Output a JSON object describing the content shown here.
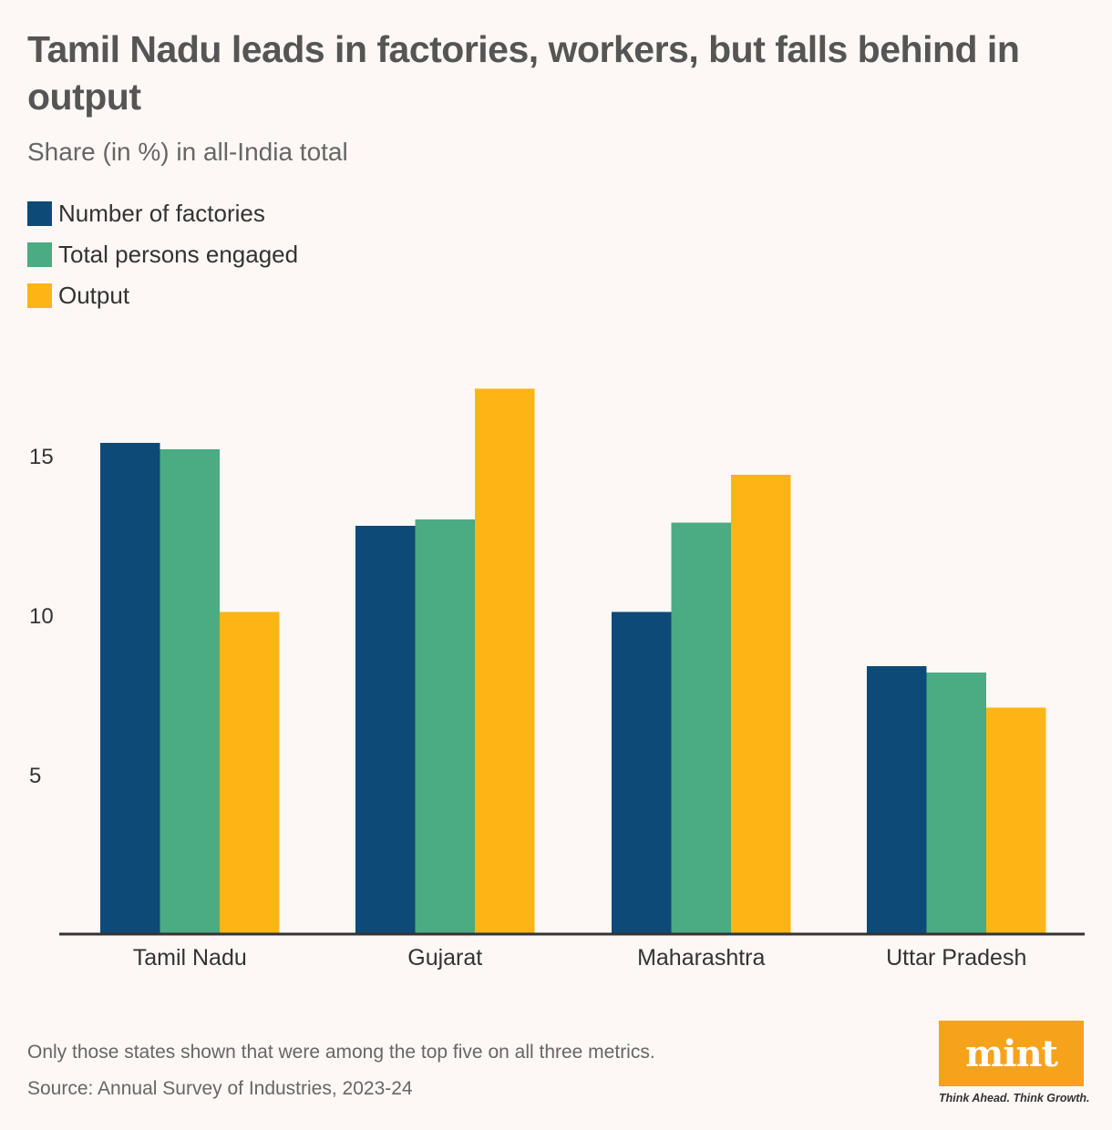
{
  "title": "Tamil Nadu leads in factories, workers, but falls behind in output",
  "subtitle": "Share (in %) in all-India total",
  "note": "Only those states shown that were among the top five on all three metrics.",
  "source": "Source: Annual Survey of Industries, 2023-24",
  "logo": {
    "text": "mint",
    "tagline": "Think Ahead. Think Growth."
  },
  "colors": {
    "factories": "#0d4a78",
    "persons": "#4bab82",
    "output": "#fdb515",
    "background": "#fdf8f5",
    "logo": "#f7a21b"
  },
  "chart_data": {
    "type": "bar",
    "categories": [
      "Tamil Nadu",
      "Gujarat",
      "Maharashtra",
      "Uttar Pradesh"
    ],
    "series": [
      {
        "name": "Number of factories",
        "values": [
          15.4,
          12.8,
          10.1,
          8.4
        ]
      },
      {
        "name": "Total persons engaged",
        "values": [
          15.2,
          13.0,
          12.9,
          8.2
        ]
      },
      {
        "name": "Output",
        "values": [
          10.1,
          17.1,
          14.4,
          7.1
        ]
      }
    ],
    "yticks": [
      5,
      10,
      15
    ],
    "ylim": [
      0,
      17.6
    ],
    "legend": "top-left",
    "grid": false,
    "xlabel": "",
    "ylabel": ""
  }
}
